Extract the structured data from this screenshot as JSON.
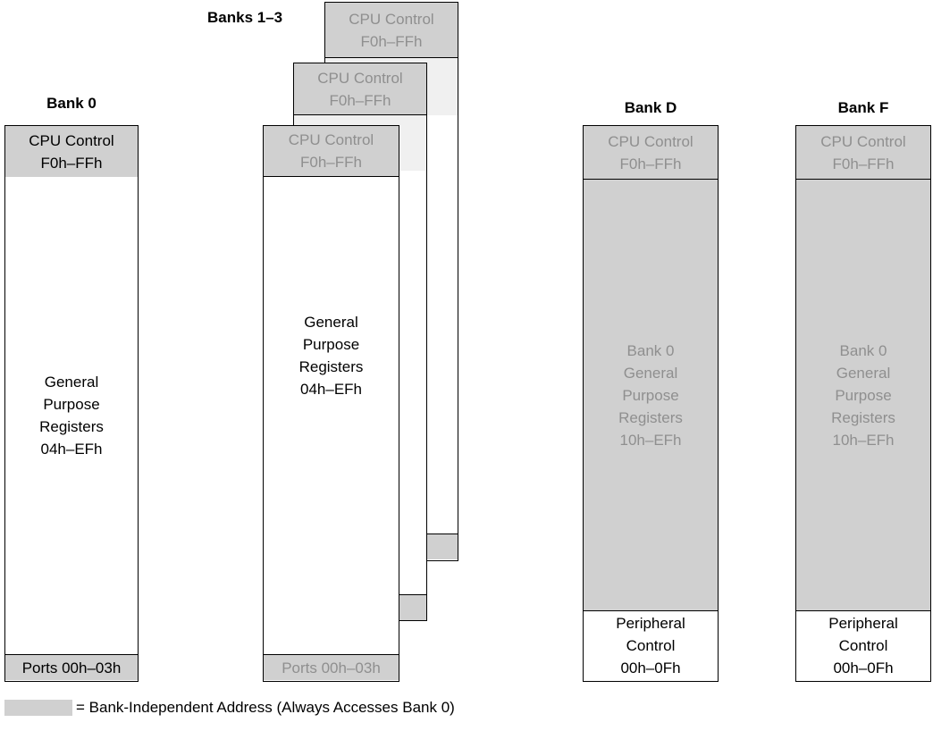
{
  "colors": {
    "shaded": "#d0d0d0",
    "dim_text": "#8f8f8f",
    "outline": "#000000",
    "light": "#f0f0f0"
  },
  "bank0": {
    "title": "Bank 0",
    "cpu_control": "CPU Control\nF0h–FFh",
    "general": "General\nPurpose\nRegisters\n04h–EFh",
    "ports": "Ports 00h–03h"
  },
  "banks13": {
    "title": "Banks 1–3",
    "back_cpu_control": "CPU Control\nF0h–FFh",
    "mid_cpu_control": "CPU Control\nF0h–FFh",
    "front_cpu_control": "CPU Control\nF0h–FFh",
    "general": "General\nPurpose\nRegisters\n04h–EFh",
    "ports": "Ports 00h–03h"
  },
  "bankD": {
    "title": "Bank D",
    "cpu_control": "CPU Control\nF0h–FFh",
    "general": "Bank 0\nGeneral\nPurpose\nRegisters\n10h–EFh",
    "peripheral": "Peripheral\nControl\n00h–0Fh"
  },
  "bankF": {
    "title": "Bank F",
    "cpu_control": "CPU Control\nF0h–FFh",
    "general": "Bank 0\nGeneral\nPurpose\nRegisters\n10h–EFh",
    "peripheral": "Peripheral\nControl\n00h–0Fh"
  },
  "legend": "= Bank-Independent Address (Always Accesses Bank 0)"
}
